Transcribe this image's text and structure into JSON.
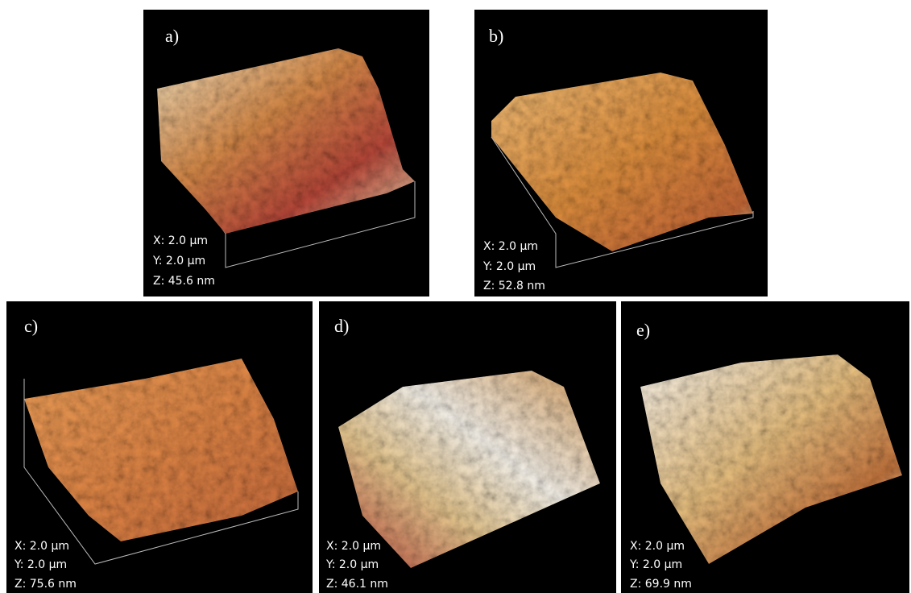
{
  "panels": [
    {
      "label": "a)",
      "x": "X: 2.0 µm",
      "y": "Y: 2.0 µm",
      "z": "Z: 45.6 nm"
    },
    {
      "label": "b)",
      "x": "X: 2.0 µm",
      "y": "Y: 2.0 µm",
      "z": "Z: 52.8 nm"
    },
    {
      "label": "c)",
      "x": "X: 2.0 µm",
      "y": "Y: 2.0 µm",
      "z": "Z: 75.6 nm"
    },
    {
      "label": "d)",
      "x": "X: 2.0 µm",
      "y": "Y: 2.0 µm",
      "z": "Z: 46.1 nm"
    },
    {
      "label": "e)",
      "x": "X: 2.0 µm",
      "y": "Y: 2.0 µm",
      "z": "Z: 69.9 nm"
    }
  ]
}
